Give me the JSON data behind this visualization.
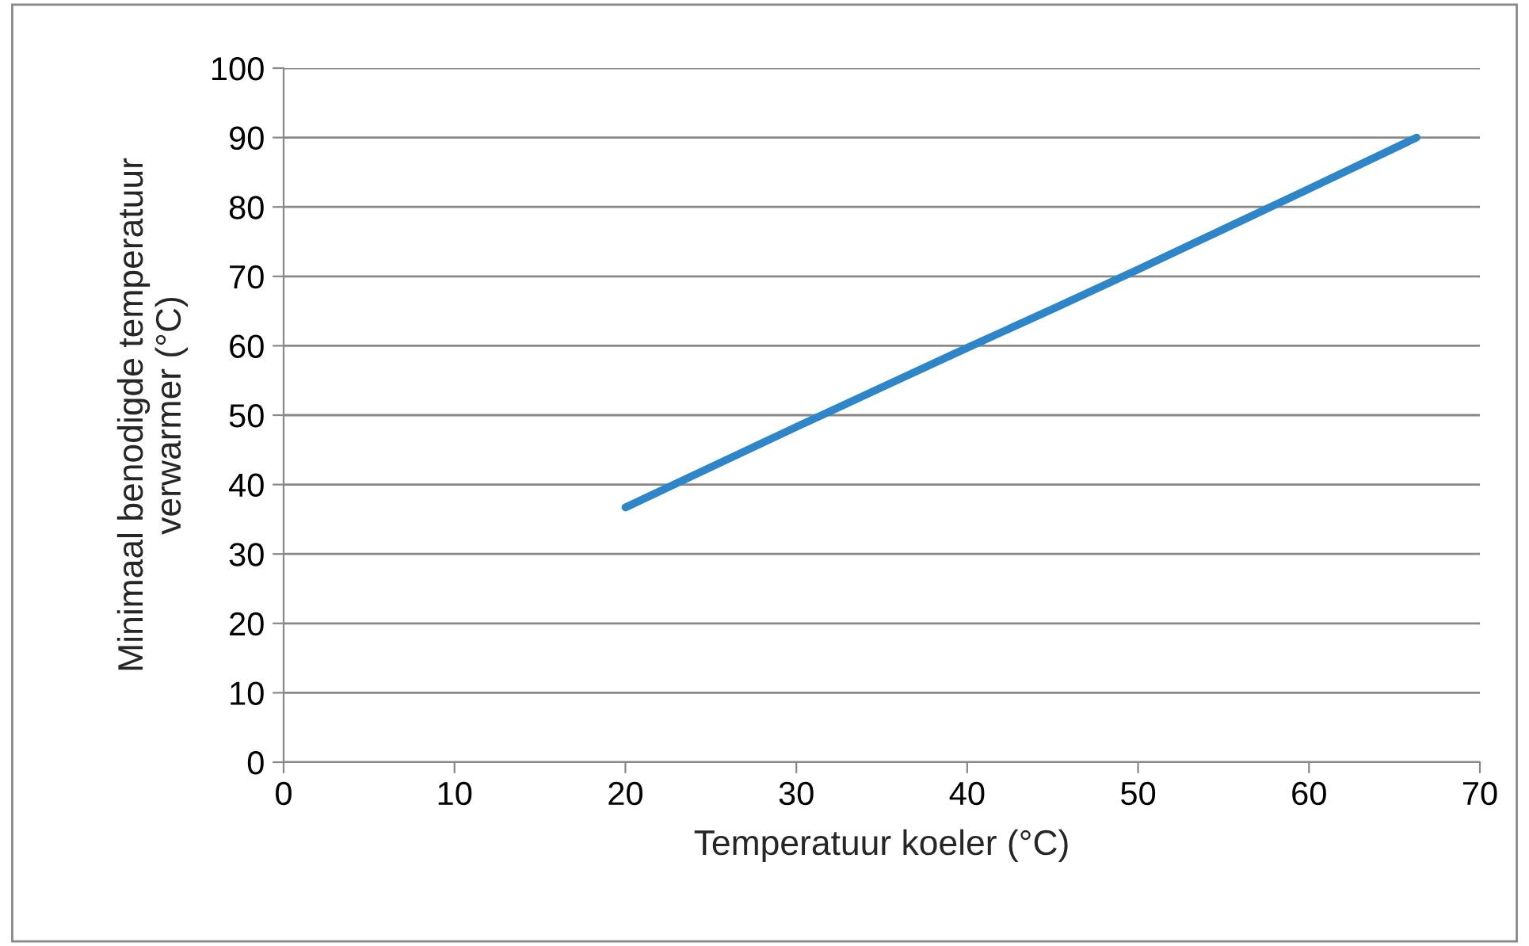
{
  "chart_data": {
    "type": "line",
    "xlabel": "Temperatuur koeler (°C)",
    "ylabel": "Minimaal benodigde temperatuur\nverwarmer (°C)",
    "series": [
      {
        "color": "#2e86c8",
        "x": [
          20,
          25,
          30,
          35,
          40,
          45,
          50,
          55,
          60,
          66.3
        ],
        "values": [
          36.7,
          42.5,
          48.3,
          54.0,
          59.7,
          65.3,
          71.0,
          76.8,
          82.6,
          90.0
        ]
      }
    ],
    "xlim": [
      0,
      70
    ],
    "xticks": [
      0,
      10,
      20,
      30,
      40,
      50,
      60,
      70
    ],
    "ylim": [
      0,
      100
    ],
    "yticks": [
      0,
      10,
      20,
      30,
      40,
      50,
      60,
      70,
      80,
      90,
      100
    ],
    "grid": "y",
    "marker": "none",
    "line_style": "solid"
  }
}
